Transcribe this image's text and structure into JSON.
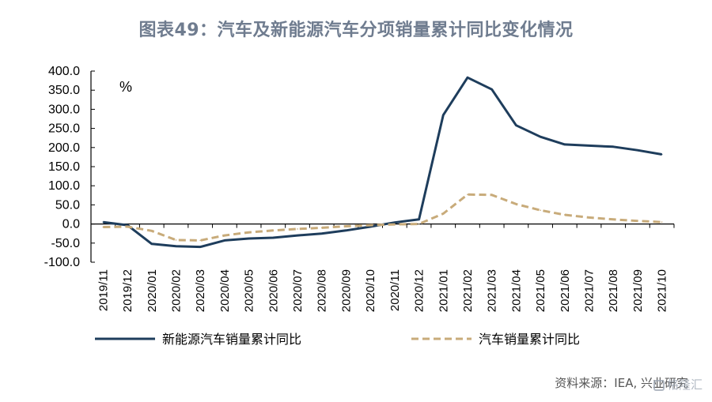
{
  "title": "图表49：汽车及新能源汽车分项销量累计同比变化情况",
  "source": "资料来源：IEA, 兴业研究",
  "watermark": "格隆汇",
  "colors": {
    "nev": "#1e3d5c",
    "auto": "#c8ab7a",
    "title": "#6f7c8f"
  },
  "chart_data": {
    "type": "line",
    "unit": "%",
    "categories": [
      "2019/11",
      "2019/12",
      "2020/01",
      "2020/02",
      "2020/03",
      "2020/04",
      "2020/05",
      "2020/06",
      "2020/07",
      "2020/08",
      "2020/09",
      "2020/10",
      "2020/11",
      "2020/12",
      "2021/01",
      "2021/02",
      "2021/03",
      "2021/04",
      "2021/05",
      "2021/06",
      "2021/07",
      "2021/08",
      "2021/09",
      "2021/10"
    ],
    "y_ticks": [
      "400.0",
      "350.0",
      "300.0",
      "250.0",
      "200.0",
      "150.0",
      "100.0",
      "50.0",
      "0.0",
      "-50.0",
      "-100.0"
    ],
    "ylim": [
      -100,
      400
    ],
    "legend_position": "bottom",
    "series": [
      {
        "name": "新能源汽车销量累计同比",
        "style": "solid",
        "color": "#1e3d5c",
        "values": [
          5,
          -3,
          -52,
          -58,
          -60,
          -43,
          -38,
          -36,
          -30,
          -25,
          -17,
          -7,
          4,
          12,
          285,
          383,
          352,
          258,
          228,
          208,
          205,
          202,
          193,
          182
        ]
      },
      {
        "name": "汽车销量累计同比",
        "style": "dashed",
        "color": "#c8ab7a",
        "values": [
          -8,
          -7,
          -18,
          -42,
          -43,
          -30,
          -22,
          -17,
          -13,
          -10,
          -6,
          -3,
          -1,
          0,
          27,
          77,
          76,
          52,
          36,
          24,
          17,
          12,
          8,
          5
        ]
      }
    ]
  }
}
